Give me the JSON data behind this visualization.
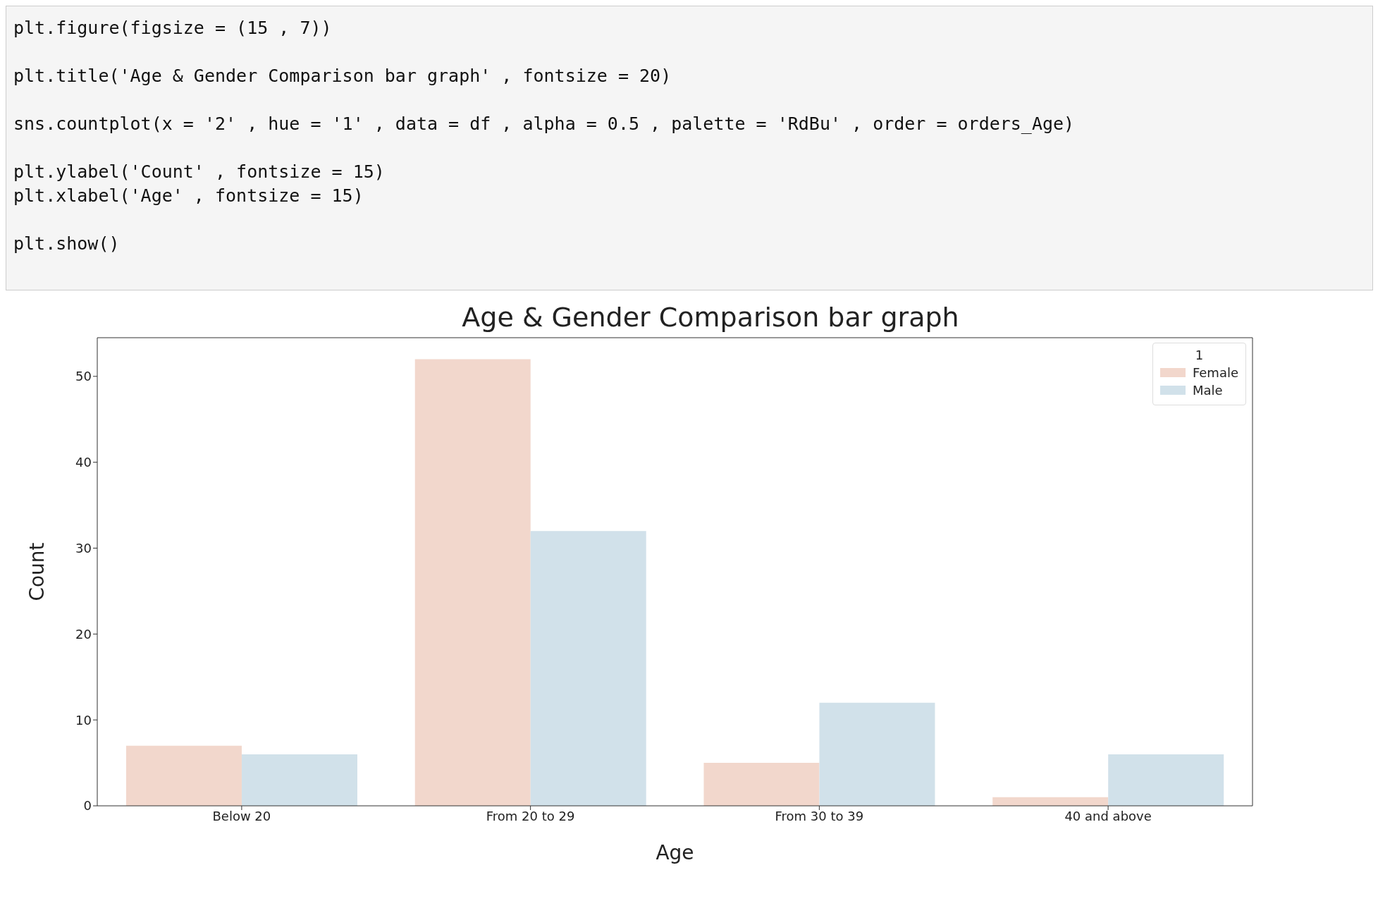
{
  "chart_data": {
    "type": "bar",
    "title": "Age & Gender Comparison bar graph",
    "xlabel": "Age",
    "ylabel": "Count",
    "legend_title": "1",
    "categories": [
      "Below 20",
      "From 20 to 29",
      "From 30 to 39",
      "40 and above"
    ],
    "series": [
      {
        "name": "Female",
        "color": "#f2d7cc",
        "values": [
          7,
          52,
          5,
          1
        ]
      },
      {
        "name": "Male",
        "color": "#d1e1ea",
        "values": [
          6,
          32,
          12,
          6
        ]
      }
    ],
    "ylim": [
      0,
      54.5
    ],
    "yticks": [
      0,
      10,
      20,
      30,
      40,
      50
    ],
    "grid": false,
    "legend": "top right",
    "annotations": [
      "plt.figure(figsize = (15 , 7))",
      "plt.title('Age & Gender Comparison bar graph' , fontsize = 20)",
      "sns.countplot(x = '2' , hue = '1' , data = df , alpha = 0.5 , palette = 'RdBu' , order = orders_Age)",
      "plt.ylabel('Count' , fontsize = 15)",
      "plt.xlabel('Age' , fontsize = 15)",
      "plt.show()"
    ]
  }
}
